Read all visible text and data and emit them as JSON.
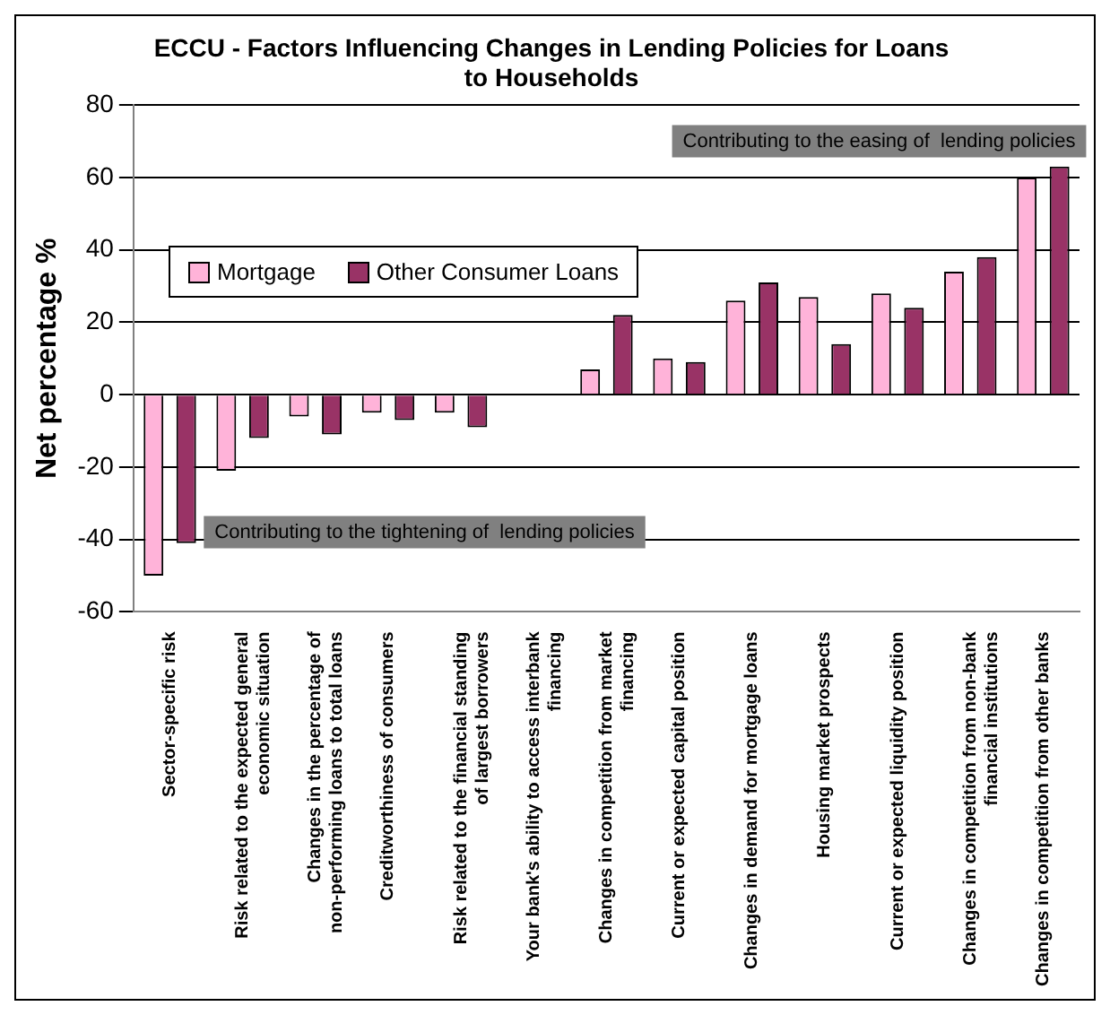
{
  "chart_data": {
    "type": "bar",
    "title": "ECCU - Factors Influencing Changes in Lending Policies for Loans to Households",
    "ylabel": "Net percentage %",
    "categories": [
      "Sector-specific risk",
      "Risk related to the expected general economic situation",
      "Changes in the percentage of non-performing loans to total loans",
      "Creditworthiness of consumers",
      "Risk related to the financial standing of largest borrowers",
      "Your bank's ability to access interbank financing",
      "Changes in competition from market financing",
      "Current or expected capital position",
      "Changes in demand for mortgage loans",
      "Housing market prospects",
      "Current or expected liquidity position",
      "Changes in competition from non-bank financial institutions",
      "Changes in competition from other banks"
    ],
    "series": [
      {
        "name": "Mortgage",
        "color": "#ffb3d9",
        "values": [
          -50,
          -21,
          -6,
          -5,
          -5,
          0,
          7,
          10,
          26,
          27,
          28,
          34,
          60
        ]
      },
      {
        "name": "Other Consumer Loans",
        "color": "#993366",
        "values": [
          -41,
          -12,
          -11,
          -7,
          -9,
          0,
          22,
          9,
          31,
          14,
          24,
          38,
          63
        ]
      }
    ],
    "ylim": [
      -60,
      80
    ],
    "yticks": [
      -60,
      -40,
      -20,
      0,
      20,
      40,
      60,
      80
    ],
    "grid": "y",
    "legend": "left",
    "annotations": [
      "Contributing to the easing of  lending policies",
      "Contributing to the tightening of  lending policies"
    ]
  }
}
